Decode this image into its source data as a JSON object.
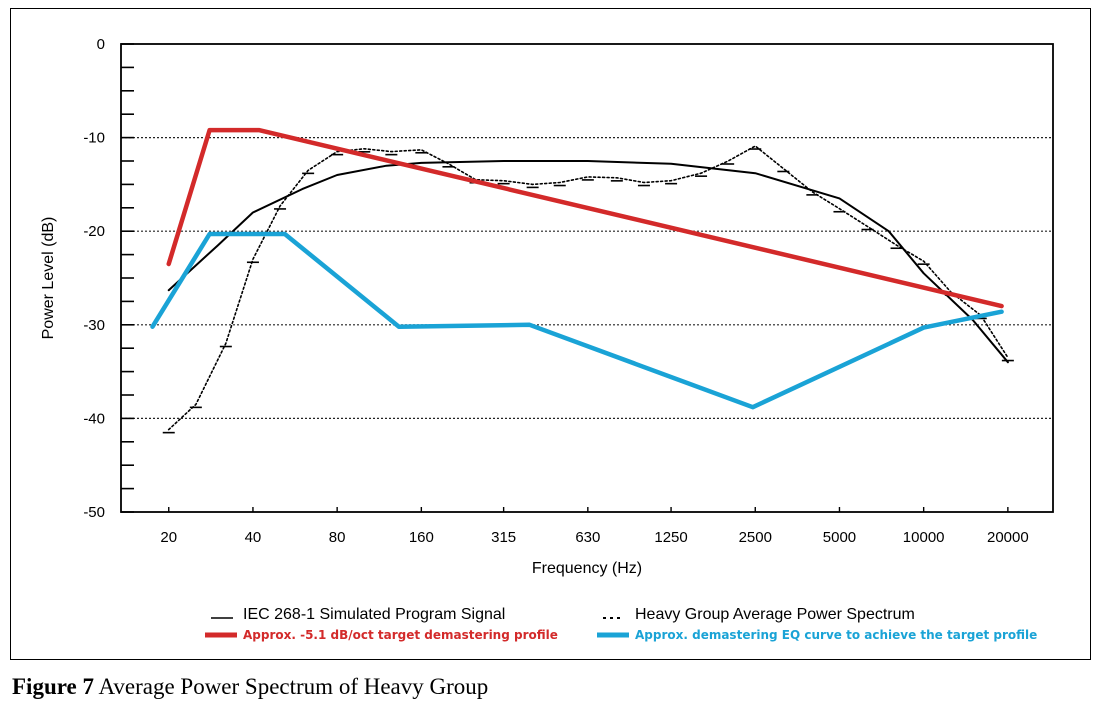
{
  "chart_data": {
    "type": "line",
    "xlabel": "Frequency (Hz)",
    "ylabel": "Power Level (dB)",
    "x_scale": "log",
    "x_ticks": [
      "20",
      "40",
      "80",
      "160",
      "315",
      "630",
      "1250",
      "2500",
      "5000",
      "10000",
      "20000"
    ],
    "y_ticks": [
      "0",
      "-10",
      "-20",
      "-30",
      "-40",
      "-50"
    ],
    "ylim": [
      -50,
      0
    ],
    "grid": "horizontal dotted",
    "legend_position": "bottom",
    "series": [
      {
        "name": "IEC 268-1 Simulated Program Signal",
        "color": "#000000",
        "style": "solid",
        "x": [
          20,
          30,
          40,
          60,
          80,
          120,
          160,
          315,
          630,
          1250,
          2500,
          5000,
          7500,
          10000,
          15000,
          20000
        ],
        "y": [
          -26.3,
          -21.5,
          -18,
          -15.5,
          -14,
          -13,
          -12.7,
          -12.5,
          -12.5,
          -12.8,
          -13.8,
          -16.5,
          -20,
          -24.5,
          -29.5,
          -34
        ]
      },
      {
        "name": "Heavy Group Average Power Spectrum",
        "color": "#000000",
        "style": "dotted",
        "x": [
          20,
          25,
          32,
          40,
          50,
          63,
          80,
          100,
          125,
          160,
          200,
          250,
          315,
          400,
          500,
          630,
          800,
          1000,
          1250,
          1600,
          2000,
          2500,
          3150,
          4000,
          5000,
          6300,
          8000,
          10000,
          12500,
          16000,
          20000
        ],
        "y": [
          -41.2,
          -38.5,
          -32,
          -23,
          -17.3,
          -13.5,
          -11.5,
          -11.2,
          -11.5,
          -11.3,
          -12.8,
          -14.5,
          -14.6,
          -15,
          -14.8,
          -14.2,
          -14.3,
          -14.8,
          -14.6,
          -13.8,
          -12.5,
          -10.9,
          -13.3,
          -15.8,
          -17.6,
          -19.5,
          -21.5,
          -23.2,
          -26.5,
          -29,
          -33.5
        ]
      },
      {
        "name": "Approx. -5.1 dB/oct target demastering profile",
        "color": "#d32a2a",
        "style": "solid",
        "x": [
          20,
          28,
          42,
          19000
        ],
        "y": [
          -23.5,
          -9.2,
          -9.2,
          -28
        ]
      },
      {
        "name": "Approx. demastering EQ curve to achieve the target profile",
        "color": "#1aa3d6",
        "style": "solid",
        "x": [
          17.5,
          28,
          52,
          133,
          390,
          2450,
          10000,
          19000
        ],
        "y": [
          -30.2,
          -20.3,
          -20.3,
          -30.2,
          -30,
          -38.8,
          -30.3,
          -28.6
        ]
      }
    ]
  },
  "caption": {
    "label": "Figure 7",
    "text": " Average Power Spectrum of Heavy Group"
  }
}
